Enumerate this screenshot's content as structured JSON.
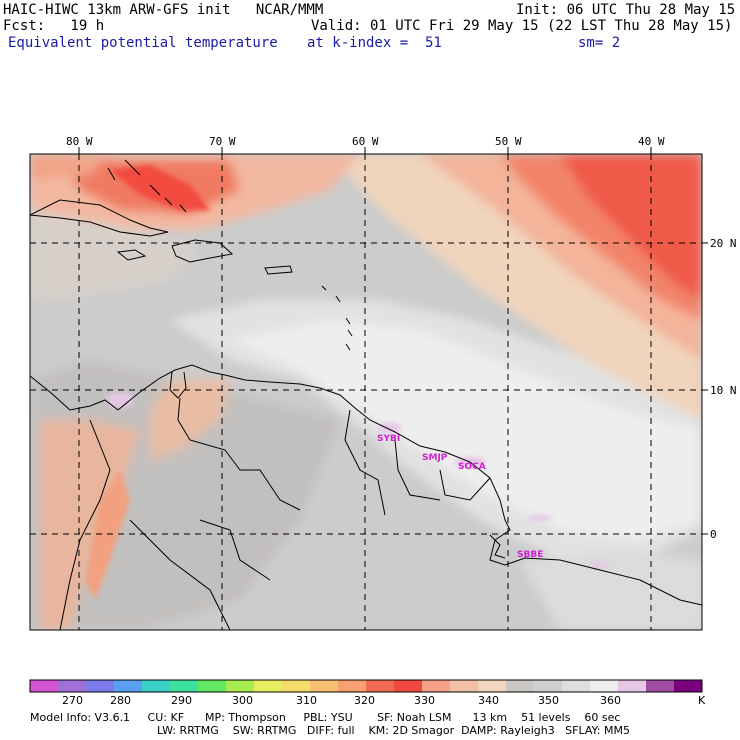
{
  "header": {
    "left_line1": "HAIC-HIWC 13km ARW-GFS init   NCAR/MMM",
    "left_line2": "Fcst:   19 h",
    "field_name": "Equivalent potential temperature",
    "level": "at k-index =  51",
    "init": "Init: 06 UTC Thu 28 May 15",
    "valid": "Valid: 01 UTC Fri 29 May 15 (22 LST Thu 28 May 15)",
    "smooth": "sm= 2"
  },
  "map": {
    "lon_labels": [
      "80 W",
      "70 W",
      "60 W",
      "50 W",
      "40 W"
    ],
    "lat_labels": [
      "20 N",
      "10 N",
      "0"
    ],
    "stations": [
      "SYBI",
      "SMJP",
      "SOCA",
      "SBBE"
    ]
  },
  "colorbar": {
    "unit": "K",
    "ticks": [
      "270",
      "280",
      "290",
      "300",
      "310",
      "320",
      "330",
      "340",
      "350",
      "360"
    ],
    "colors": [
      "#d455d4",
      "#a070d8",
      "#7b7bea",
      "#5aa0f0",
      "#3ad0c8",
      "#3ee0a0",
      "#60e860",
      "#a8ec50",
      "#e6ee60",
      "#f6dc6a",
      "#f8c070",
      "#f7a070",
      "#f26a52",
      "#f04a40",
      "#f5a18a",
      "#f2c0a6",
      "#f0d6c0",
      "#cac6c2",
      "#d0d0d0",
      "#dedede",
      "#eeeeee",
      "#e6c8e6",
      "#a04ca0",
      "#7a0080"
    ]
  },
  "model_info": {
    "line1": "Model Info: V3.6.1     CU: KF      MP: Thompson     PBL: YSU       SF: Noah LSM      13 km    51 levels    60 sec",
    "line2": "LW: RRTMG    SW: RRTMG   DIFF: full    KM: 2D Smagor  DAMP: Rayleigh3   SFLAY: MM5"
  }
}
